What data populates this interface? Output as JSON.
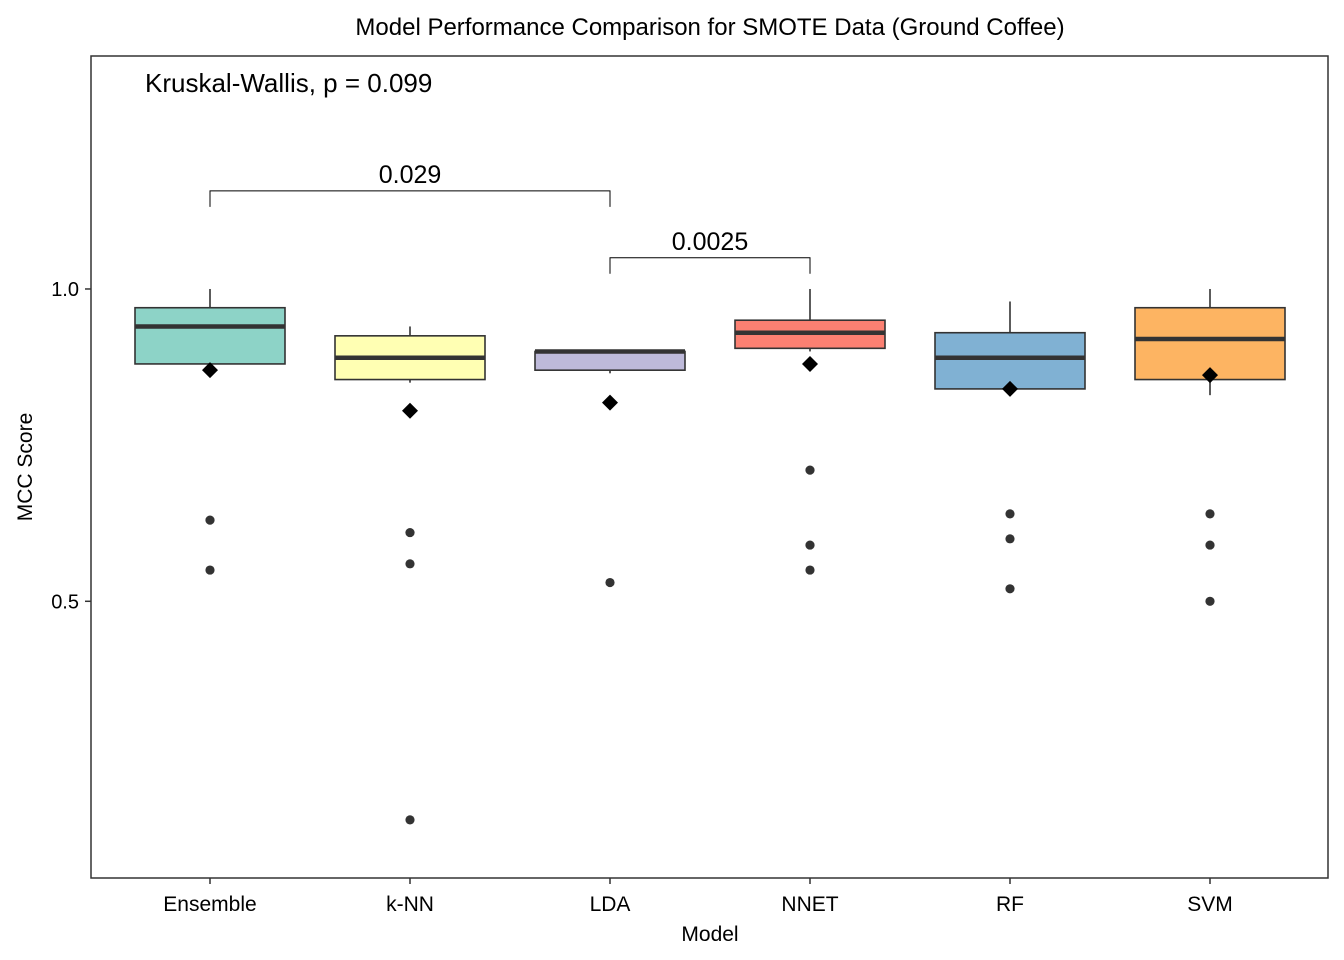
{
  "chart_data": {
    "type": "box",
    "title": "Model Performance Comparison for SMOTE Data (Ground Coffee)",
    "xlabel": "Model",
    "ylabel": "MCC Score",
    "ylim": [
      0.057,
      1.373
    ],
    "yticks": [
      0.5,
      1.0
    ],
    "ytick_labels": [
      "0.5",
      "1.0"
    ],
    "grid": false,
    "legend": "none",
    "annotation": "Kruskal-Wallis, p = 0.099",
    "categories": [
      "Ensemble",
      "k-NN",
      "LDA",
      "NNET",
      "RF",
      "SVM"
    ],
    "boxes": [
      {
        "name": "Ensemble",
        "color": "#8DD3C7",
        "whisker_low": 0.87,
        "q1": 0.88,
        "median": 0.94,
        "q3": 0.97,
        "whisker_high": 1.0,
        "mean": 0.87,
        "outliers": [
          0.63,
          0.55
        ]
      },
      {
        "name": "k-NN",
        "color": "#FFFFB3",
        "whisker_low": 0.85,
        "q1": 0.855,
        "median": 0.89,
        "q3": 0.925,
        "whisker_high": 0.94,
        "mean": 0.805,
        "outliers": [
          0.61,
          0.56,
          0.15
        ]
      },
      {
        "name": "LDA",
        "color": "#BEBADA",
        "whisker_low": 0.865,
        "q1": 0.87,
        "median": 0.9,
        "q3": 0.9,
        "whisker_high": 0.9,
        "mean": 0.818,
        "outliers": [
          0.53
        ]
      },
      {
        "name": "NNET",
        "color": "#FB8072",
        "whisker_low": 0.9,
        "q1": 0.905,
        "median": 0.93,
        "q3": 0.95,
        "whisker_high": 1.0,
        "mean": 0.88,
        "outliers": [
          0.71,
          0.59,
          0.55
        ]
      },
      {
        "name": "RF",
        "color": "#80B1D3",
        "whisker_low": 0.84,
        "q1": 0.84,
        "median": 0.89,
        "q3": 0.93,
        "whisker_high": 0.98,
        "mean": 0.84,
        "outliers": [
          0.64,
          0.6,
          0.52
        ]
      },
      {
        "name": "SVM",
        "color": "#FDB462",
        "whisker_low": 0.83,
        "q1": 0.855,
        "median": 0.92,
        "q3": 0.97,
        "whisker_high": 1.0,
        "mean": 0.862,
        "outliers": [
          0.64,
          0.59,
          0.5
        ]
      }
    ],
    "comparisons": [
      {
        "from": "Ensemble",
        "to": "LDA",
        "label": "0.029",
        "y": 1.157
      },
      {
        "from": "LDA",
        "to": "NNET",
        "label": "0.0025",
        "y": 1.05
      }
    ]
  }
}
